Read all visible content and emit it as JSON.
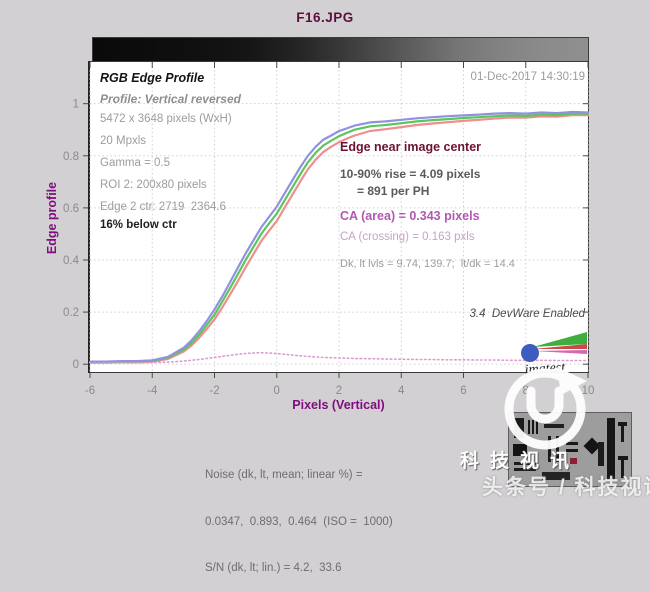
{
  "title": "F16.JPG",
  "timestamp": "01-Dec-2017 14:30:19",
  "info_block": {
    "heading": "RGB Edge Profile",
    "subheading": "Profile: Vertical reversed",
    "lines": [
      "5472 x 3648 pixels (WxH)",
      "20 Mpxls",
      "Gamma = 0.5",
      "ROI 2: 200x80 pixels",
      "Edge 2 ctr: 2719  2364.6"
    ],
    "emphasis": "16% below ctr"
  },
  "results_block": {
    "heading": "Edge near image center",
    "rise_line1": "10-90% rise = 4.09 pixels",
    "rise_line2": "= 891 per PH",
    "ca_area": "CA (area) = 0.343 pixels",
    "ca_crossing": "CA (crossing) = 0.163 pxls",
    "levels": "Dk, lt lvls = 9.74, 139.7;  lt/dk = 14.4"
  },
  "devware_note": "3.4  DevWare Enabled",
  "imatest_logo_text": "imatest",
  "noise_block": {
    "line1": "Noise (dk, lt, mean; linear %) =",
    "line2": "0.0347,  0.893,  0.464  (ISO =  1000)",
    "line3": "S/N (dk, lt; lin.) = 4.2,  33.6"
  },
  "watermark": {
    "brand": "科技视讯",
    "byline": "头条号 / 科技视讯"
  },
  "colors": {
    "background": "#d3d0d3",
    "title": "#5c0f3c",
    "axis_label": "#800d80",
    "results_heading": "#6d1233",
    "ca_accent": "#b158b1",
    "gray_text": "#9c9c9c"
  },
  "chart_data": {
    "type": "line",
    "title": "F16.JPG",
    "xlabel": "Pixels (Vertical)",
    "ylabel": "Edge profile",
    "xlim": [
      -6,
      10
    ],
    "ylim": [
      -0.03,
      1.16
    ],
    "xticks": [
      -6,
      -4,
      -2,
      0,
      2,
      4,
      6,
      8,
      10
    ],
    "yticks": [
      0,
      0.2,
      0.4,
      0.6,
      0.8,
      1
    ],
    "grid": true,
    "x": [
      -6,
      -5.5,
      -5,
      -4.5,
      -4,
      -3.5,
      -3,
      -2.75,
      -2.5,
      -2.25,
      -2,
      -1.75,
      -1.5,
      -1.25,
      -1,
      -0.75,
      -0.5,
      -0.25,
      0,
      0.25,
      0.5,
      0.75,
      1,
      1.25,
      1.5,
      1.75,
      2,
      2.25,
      2.5,
      3,
      3.5,
      4,
      4.5,
      5,
      5.5,
      6,
      6.5,
      7,
      7.5,
      8,
      8.5,
      9,
      9.5,
      10
    ],
    "series": [
      {
        "name": "Red edge profile",
        "color": "#ef8e8e",
        "width": 2.2,
        "dotted": false,
        "values": [
          0.006,
          0.006,
          0.008,
          0.008,
          0.01,
          0.02,
          0.048,
          0.07,
          0.1,
          0.135,
          0.172,
          0.218,
          0.268,
          0.318,
          0.372,
          0.422,
          0.472,
          0.512,
          0.55,
          0.6,
          0.65,
          0.7,
          0.748,
          0.785,
          0.815,
          0.835,
          0.852,
          0.866,
          0.878,
          0.895,
          0.902,
          0.91,
          0.918,
          0.924,
          0.929,
          0.934,
          0.938,
          0.943,
          0.947,
          0.946,
          0.951,
          0.95,
          0.956,
          0.956
        ]
      },
      {
        "name": "Green edge profile",
        "color": "#5bc75b",
        "width": 2.2,
        "dotted": false,
        "values": [
          0.008,
          0.008,
          0.01,
          0.01,
          0.012,
          0.024,
          0.055,
          0.08,
          0.112,
          0.15,
          0.19,
          0.24,
          0.292,
          0.345,
          0.4,
          0.45,
          0.5,
          0.54,
          0.578,
          0.628,
          0.678,
          0.728,
          0.775,
          0.812,
          0.84,
          0.858,
          0.875,
          0.888,
          0.9,
          0.913,
          0.918,
          0.925,
          0.932,
          0.937,
          0.941,
          0.945,
          0.948,
          0.952,
          0.955,
          0.953,
          0.958,
          0.956,
          0.962,
          0.962
        ]
      },
      {
        "name": "Blue edge profile",
        "color": "#9191e0",
        "width": 2.2,
        "dotted": false,
        "values": [
          0.01,
          0.01,
          0.012,
          0.012,
          0.015,
          0.028,
          0.062,
          0.09,
          0.125,
          0.165,
          0.21,
          0.26,
          0.315,
          0.37,
          0.425,
          0.475,
          0.525,
          0.565,
          0.605,
          0.655,
          0.705,
          0.755,
          0.8,
          0.835,
          0.862,
          0.878,
          0.895,
          0.905,
          0.916,
          0.928,
          0.932,
          0.938,
          0.944,
          0.948,
          0.952,
          0.955,
          0.958,
          0.962,
          0.964,
          0.962,
          0.966,
          0.964,
          0.968,
          0.966
        ]
      },
      {
        "name": "CA profile",
        "color": "#dd9ace",
        "width": 1.6,
        "dotted": true,
        "values": [
          0.004,
          0.004,
          0.005,
          0.005,
          0.006,
          0.008,
          0.012,
          0.015,
          0.018,
          0.022,
          0.026,
          0.03,
          0.034,
          0.038,
          0.041,
          0.043,
          0.044,
          0.043,
          0.041,
          0.038,
          0.035,
          0.032,
          0.03,
          0.028,
          0.026,
          0.025,
          0.024,
          0.023,
          0.022,
          0.021,
          0.02,
          0.019,
          0.018,
          0.018,
          0.017,
          0.017,
          0.016,
          0.016,
          0.015,
          0.015,
          0.015,
          0.014,
          0.014,
          0.014
        ]
      }
    ]
  }
}
